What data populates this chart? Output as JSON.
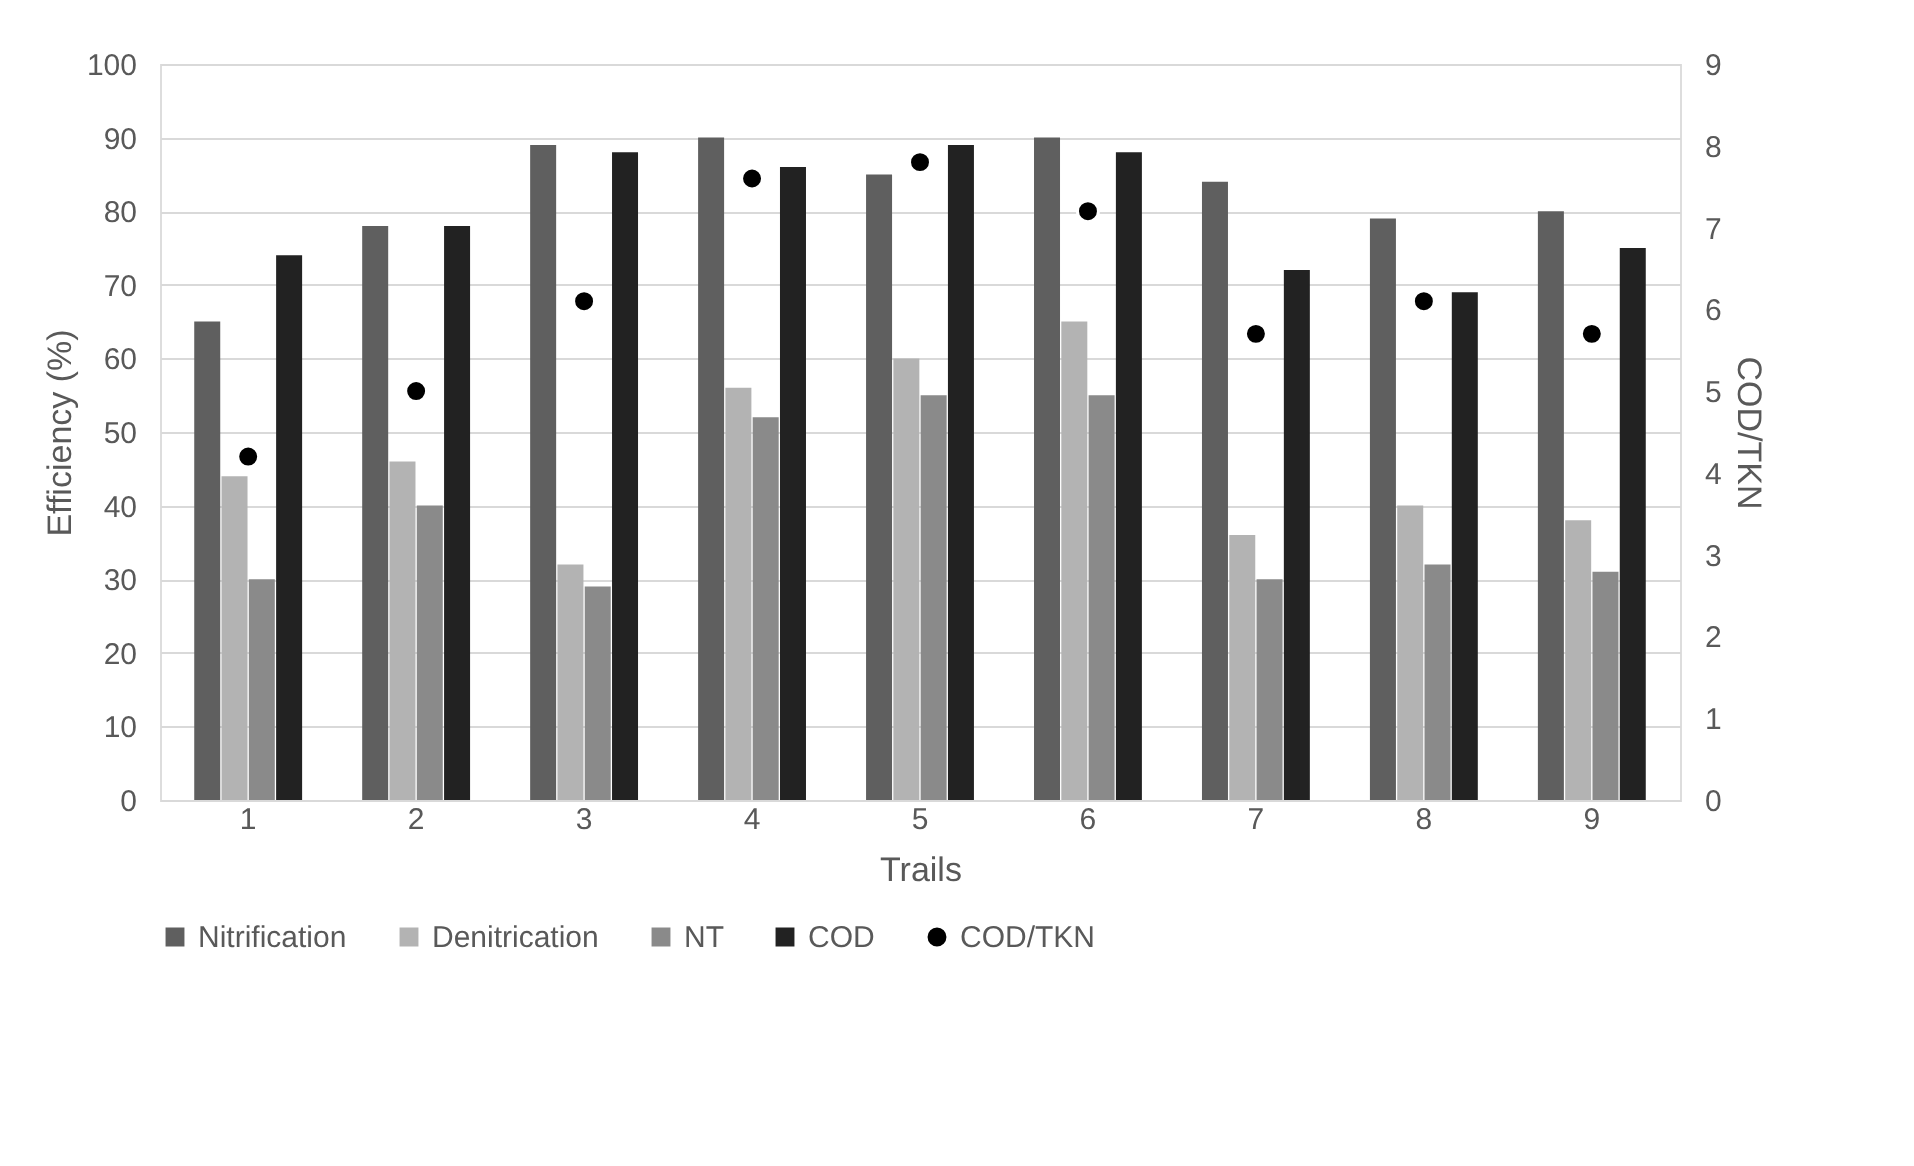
{
  "chart_data": {
    "type": "bar",
    "xlabel": "Trails",
    "ylabel": "Efficiency (%)",
    "y2label": "COD/TKN",
    "categories": [
      "1",
      "2",
      "3",
      "4",
      "5",
      "6",
      "7",
      "8",
      "9"
    ],
    "series": [
      {
        "name": "Nitrification",
        "color": "#5f5f5f",
        "values": [
          65,
          78,
          89,
          90,
          85,
          90,
          84,
          79,
          80
        ]
      },
      {
        "name": "Denitrication",
        "color": "#b3b3b3",
        "values": [
          44,
          46,
          32,
          56,
          60,
          65,
          36,
          40,
          38
        ]
      },
      {
        "name": "NT",
        "color": "#8a8a8a",
        "values": [
          30,
          40,
          29,
          52,
          55,
          55,
          30,
          32,
          31
        ]
      },
      {
        "name": "COD",
        "color": "#222222",
        "values": [
          74,
          78,
          88,
          86,
          89,
          88,
          72,
          69,
          75
        ]
      },
      {
        "name": "COD/TKN",
        "type": "scatter",
        "axis": "y2",
        "color": "#000000",
        "values": [
          4.2,
          5.0,
          6.1,
          7.6,
          7.8,
          7.2,
          5.7,
          6.1,
          5.7
        ]
      }
    ],
    "ylim": [
      0,
      100
    ],
    "yticks": [
      0,
      10,
      20,
      30,
      40,
      50,
      60,
      70,
      80,
      90,
      100
    ],
    "y2lim": [
      0,
      9
    ],
    "y2ticks": [
      0,
      1,
      2,
      3,
      4,
      5,
      6,
      7,
      8,
      9
    ],
    "grid": "y",
    "legend": "bottom",
    "marker": "circle"
  }
}
